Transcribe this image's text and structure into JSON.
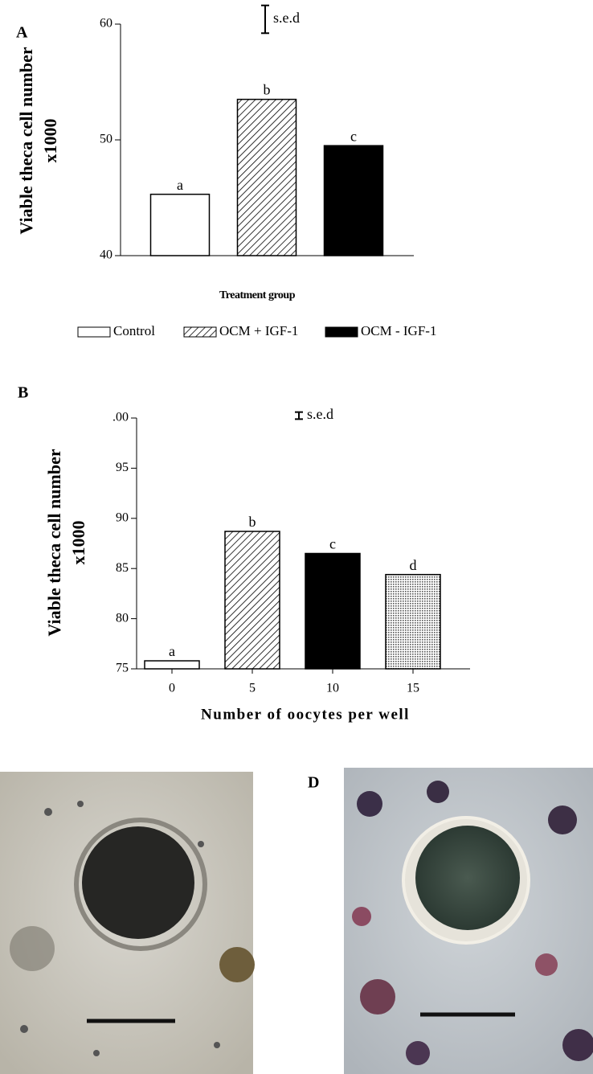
{
  "figure": {
    "image_label": "D"
  },
  "chart_data": [
    {
      "type": "bar",
      "panel_label": "A",
      "ylabel": [
        "Viable theca cell number",
        "x1000"
      ],
      "xlabel": "Treatment group",
      "ylim": [
        40,
        60
      ],
      "yticks": [
        40,
        50,
        60
      ],
      "sed": 2.4,
      "sed_label": "s.e.d",
      "series": [
        {
          "name": "Control",
          "pattern": "none",
          "color": "#ffffff",
          "values": [
            45.3
          ],
          "letters": [
            "a"
          ]
        },
        {
          "name": "OCM + IGF-1",
          "pattern": "hatch",
          "color": "#ffffff",
          "values": [
            53.5
          ],
          "letters": [
            "b"
          ]
        },
        {
          "name": "OCM - IGF-1",
          "pattern": "solid",
          "color": "#000000",
          "values": [
            49.5
          ],
          "letters": [
            "c"
          ]
        }
      ]
    },
    {
      "type": "bar",
      "panel_label": "B",
      "ylabel": [
        "Viable theca cell number",
        "x1000"
      ],
      "xlabel": "Number of  oocytes per well",
      "ylim": [
        75,
        100
      ],
      "yticks": [
        75,
        80,
        85,
        90,
        95,
        {
          "value": 100,
          "label": ".00"
        }
      ],
      "sed": 0.7,
      "sed_label": "s.e.d",
      "categories": [
        "0",
        "5",
        "10",
        "15"
      ],
      "values": [
        75.8,
        88.7,
        86.5,
        84.4
      ],
      "letters": [
        "a",
        "b",
        "c",
        "d"
      ],
      "bar_patterns": [
        "none",
        "hatch",
        "solid",
        "dots"
      ]
    }
  ]
}
